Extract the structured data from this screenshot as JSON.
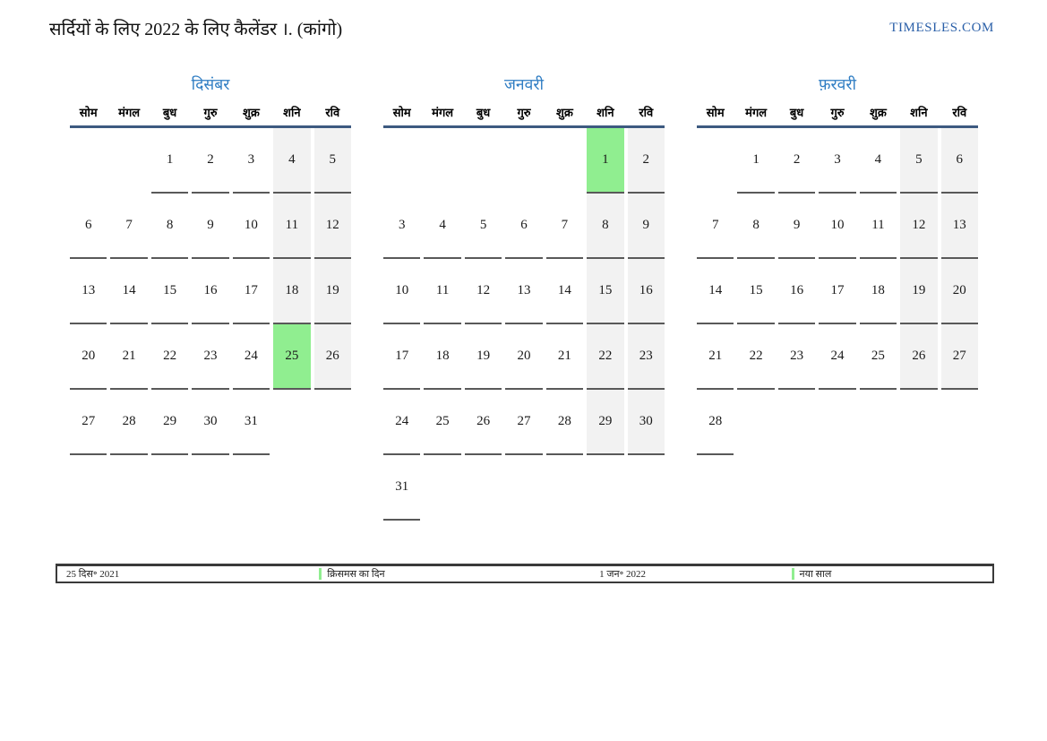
{
  "page": {
    "title": "सर्दियों के लिए 2022 के लिए कैलेंडर ।. (कांगो)",
    "site": "TIMESLES.COM"
  },
  "weekday_headers": [
    "सोम",
    "मंगल",
    "बुध",
    "गुरु",
    "शुक्र",
    "शनि",
    "रवि"
  ],
  "months": [
    {
      "name": "दिसंबर",
      "rows": [
        [
          "",
          "",
          "1",
          "2",
          "3",
          "4",
          "5"
        ],
        [
          "6",
          "7",
          "8",
          "9",
          "10",
          "11",
          "12"
        ],
        [
          "13",
          "14",
          "15",
          "16",
          "17",
          "18",
          "19"
        ],
        [
          "20",
          "21",
          "22",
          "23",
          "24",
          "25",
          "26"
        ],
        [
          "27",
          "28",
          "29",
          "30",
          "31",
          "",
          ""
        ]
      ],
      "highlighted_days": [
        "25"
      ]
    },
    {
      "name": "जनवरी",
      "rows": [
        [
          "",
          "",
          "",
          "",
          "",
          "1",
          "2"
        ],
        [
          "3",
          "4",
          "5",
          "6",
          "7",
          "8",
          "9"
        ],
        [
          "10",
          "11",
          "12",
          "13",
          "14",
          "15",
          "16"
        ],
        [
          "17",
          "18",
          "19",
          "20",
          "21",
          "22",
          "23"
        ],
        [
          "24",
          "25",
          "26",
          "27",
          "28",
          "29",
          "30"
        ],
        [
          "31",
          "",
          "",
          "",
          "",
          "",
          ""
        ]
      ],
      "highlighted_days": [
        "1"
      ]
    },
    {
      "name": "फ़रवरी",
      "rows": [
        [
          "",
          "1",
          "2",
          "3",
          "4",
          "5",
          "6"
        ],
        [
          "7",
          "8",
          "9",
          "10",
          "11",
          "12",
          "13"
        ],
        [
          "14",
          "15",
          "16",
          "17",
          "18",
          "19",
          "20"
        ],
        [
          "21",
          "22",
          "23",
          "24",
          "25",
          "26",
          "27"
        ],
        [
          "28",
          "",
          "",
          "",
          "",
          "",
          ""
        ]
      ],
      "highlighted_days": []
    }
  ],
  "legend": {
    "entries": [
      {
        "date": "25 दिस॰ 2021",
        "label": "क्रिसमस का दिन"
      },
      {
        "date": "1 जन॰ 2022",
        "label": "नया साल"
      }
    ]
  },
  "colors": {
    "month_title": "#2f7dc3",
    "site_link": "#2a5fa8",
    "header_rule": "#3d5a80",
    "cell_underline": "#595959",
    "weekend_bg": "#f2f2f2",
    "holiday_bg": "#90ee90"
  }
}
